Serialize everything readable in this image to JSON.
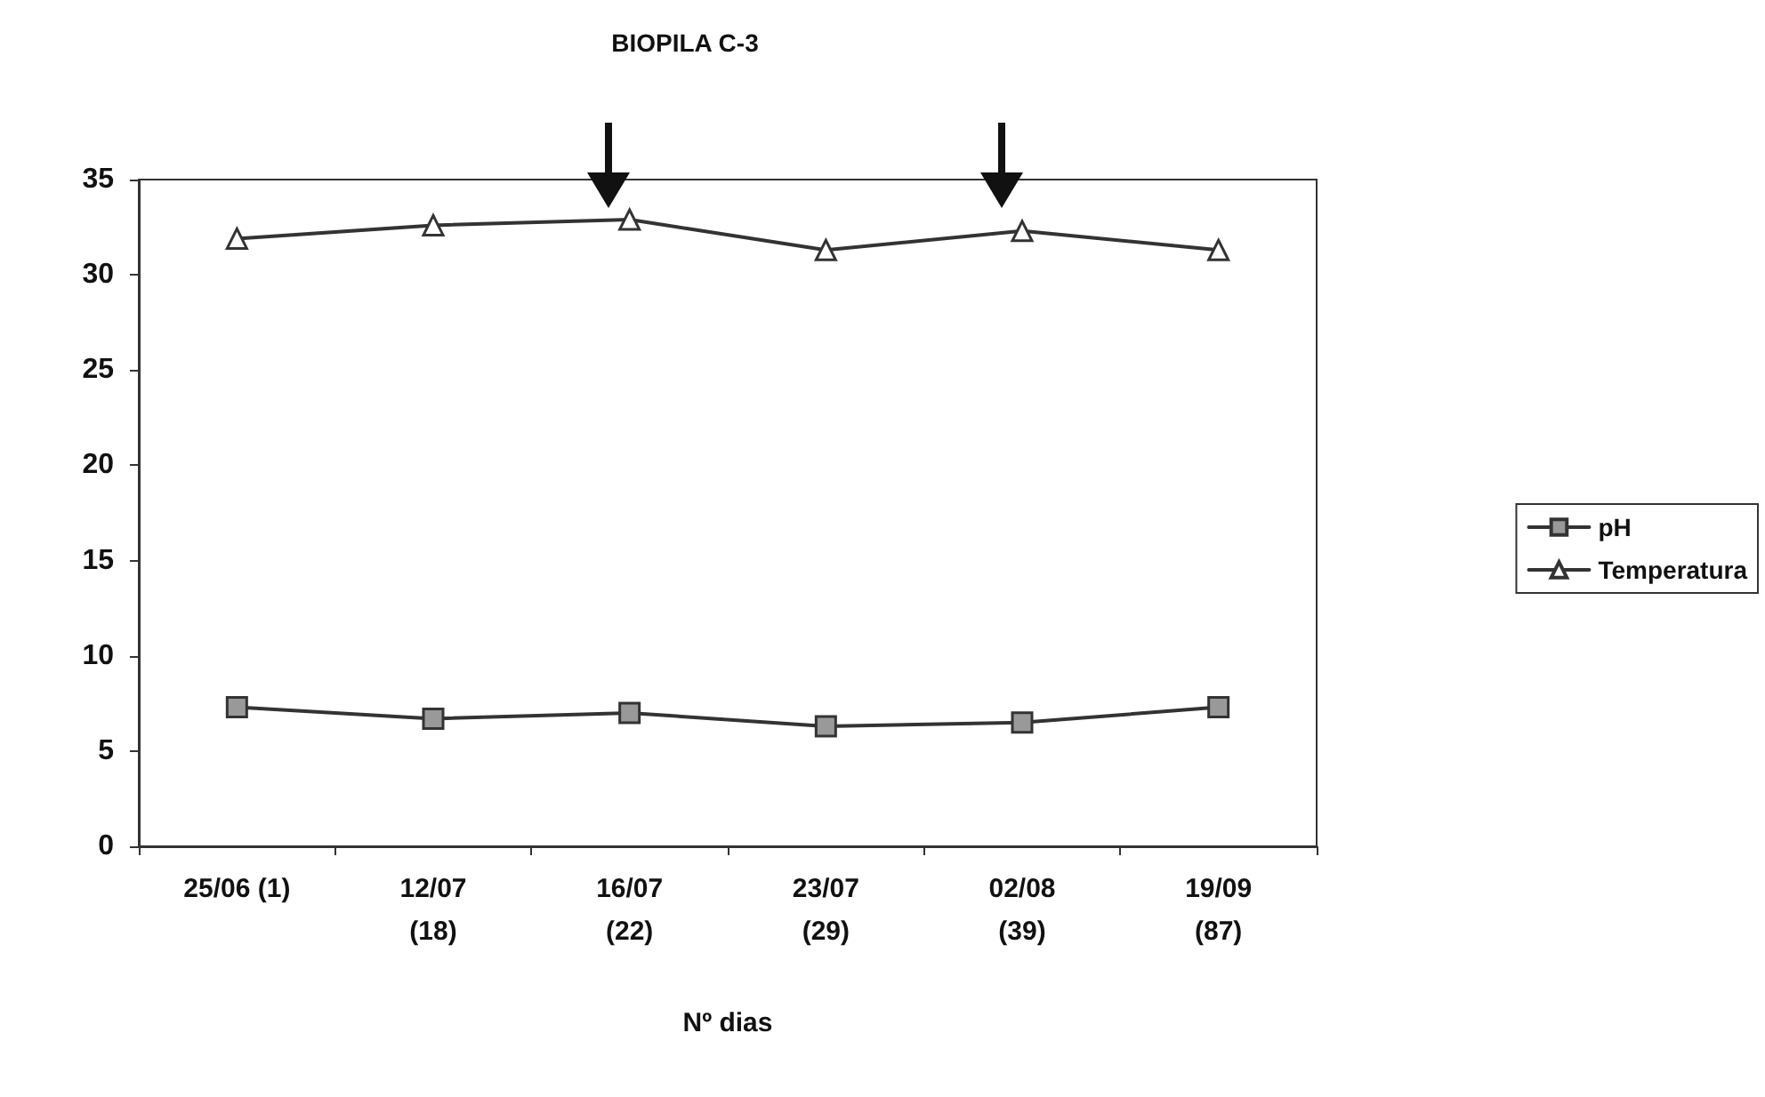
{
  "chart_data": {
    "type": "line",
    "title": "BIOPILA C-3",
    "xlabel": "Nº dias",
    "categories": [
      "25/06 (1)",
      "12/07\n(18)",
      "16/07\n(22)",
      "23/07\n(29)",
      "02/08\n(39)",
      "19/09\n(87)"
    ],
    "series": [
      {
        "name": "pH",
        "color": "#333333",
        "marker": "square",
        "values": [
          7.3,
          6.7,
          7.0,
          6.3,
          6.5,
          7.3
        ]
      },
      {
        "name": "Temperatura",
        "color": "#333333",
        "marker": "triangle",
        "values": [
          31.9,
          32.6,
          32.9,
          31.3,
          32.3,
          31.3
        ]
      }
    ],
    "ylim": [
      0,
      35
    ],
    "yticks": [
      0,
      5,
      10,
      15,
      20,
      25,
      30,
      35
    ],
    "grid": false,
    "legend": "right",
    "line_style": "solid"
  }
}
